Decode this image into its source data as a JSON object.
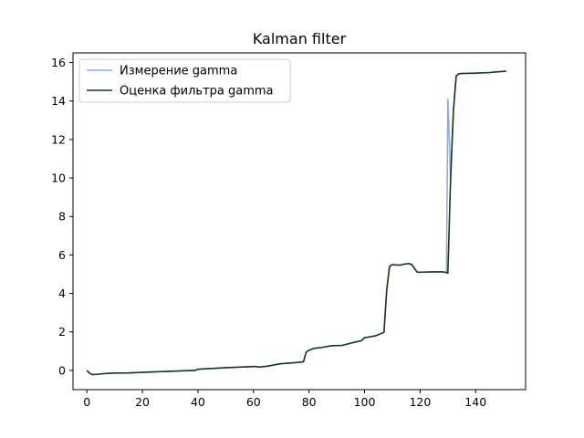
{
  "chart_data": {
    "type": "line",
    "title": "Kalman filter",
    "xlabel": "",
    "ylabel": "",
    "xlim": [
      -5,
      158
    ],
    "ylim": [
      -1,
      16.5
    ],
    "xticks": [
      0,
      20,
      40,
      60,
      80,
      100,
      120,
      140
    ],
    "yticks": [
      0,
      2,
      4,
      6,
      8,
      10,
      12,
      14,
      16
    ],
    "grid": false,
    "legend_position": "top-left",
    "series": [
      {
        "name": "Измерение gamma",
        "color": "#8fa6e8",
        "x": [
          0,
          1,
          2,
          4,
          6,
          8,
          10,
          15,
          20,
          25,
          30,
          35,
          39,
          40,
          41,
          45,
          50,
          55,
          60,
          61,
          62,
          65,
          68,
          70,
          75,
          78,
          79,
          80,
          82,
          85,
          88,
          92,
          96,
          99,
          100,
          101,
          104,
          106,
          107,
          108,
          109,
          110,
          111,
          113,
          114,
          116,
          117,
          118,
          119,
          125,
          128,
          129,
          129.5,
          130,
          131,
          132,
          133,
          134,
          135,
          140,
          145,
          148,
          151
        ],
        "y": [
          0.0,
          -0.15,
          -0.22,
          -0.2,
          -0.17,
          -0.15,
          -0.14,
          -0.13,
          -0.1,
          -0.07,
          -0.05,
          -0.02,
          0.0,
          0.06,
          0.07,
          0.1,
          0.14,
          0.17,
          0.2,
          0.2,
          0.17,
          0.22,
          0.3,
          0.35,
          0.4,
          0.45,
          0.95,
          1.05,
          1.15,
          1.2,
          1.28,
          1.3,
          1.45,
          1.55,
          1.7,
          1.72,
          1.8,
          1.92,
          1.98,
          4.2,
          5.4,
          5.5,
          5.48,
          5.47,
          5.52,
          5.55,
          5.5,
          5.3,
          5.1,
          5.12,
          5.12,
          5.1,
          5.1,
          14.1,
          10.0,
          13.5,
          15.3,
          15.42,
          15.43,
          15.45,
          15.48,
          15.52,
          15.55
        ]
      },
      {
        "name": "Оценка фильтра gamma",
        "color": "#173a17",
        "x": [
          0,
          1,
          2,
          4,
          6,
          8,
          10,
          15,
          20,
          25,
          30,
          35,
          39,
          40,
          41,
          45,
          50,
          55,
          60,
          61,
          62,
          65,
          68,
          70,
          75,
          78,
          79,
          80,
          82,
          85,
          88,
          92,
          96,
          99,
          100,
          101,
          104,
          106,
          107,
          108,
          109,
          110,
          111,
          113,
          114,
          116,
          117,
          118,
          119,
          125,
          128,
          129,
          130,
          131,
          132,
          133,
          134,
          135,
          140,
          145,
          148,
          151
        ],
        "y": [
          0.0,
          -0.15,
          -0.22,
          -0.2,
          -0.17,
          -0.15,
          -0.14,
          -0.13,
          -0.1,
          -0.07,
          -0.05,
          -0.02,
          0.0,
          0.06,
          0.07,
          0.1,
          0.14,
          0.17,
          0.2,
          0.2,
          0.17,
          0.22,
          0.3,
          0.35,
          0.4,
          0.45,
          0.95,
          1.05,
          1.15,
          1.2,
          1.28,
          1.3,
          1.45,
          1.55,
          1.7,
          1.72,
          1.8,
          1.92,
          1.98,
          4.2,
          5.4,
          5.5,
          5.48,
          5.47,
          5.52,
          5.55,
          5.5,
          5.3,
          5.1,
          5.12,
          5.12,
          5.1,
          5.05,
          10.0,
          13.5,
          15.3,
          15.42,
          15.43,
          15.45,
          15.48,
          15.52,
          15.55
        ]
      }
    ]
  }
}
